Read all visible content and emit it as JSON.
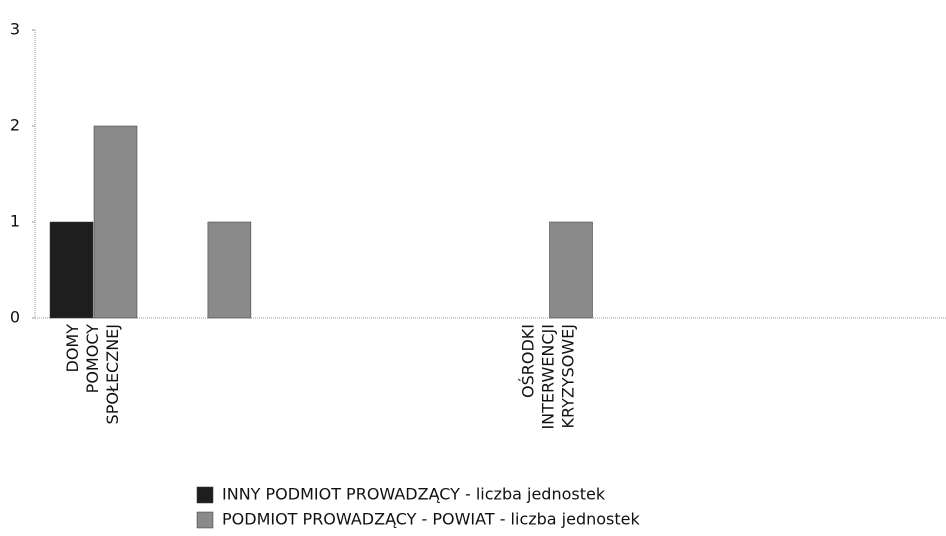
{
  "chart_data": {
    "type": "bar",
    "categories": [
      "DOMY POMOCY SPOŁECZNEJ",
      null,
      null,
      null,
      "OŚRODKI INTERWENCJI KRYZYSOWEJ",
      null,
      null,
      null
    ],
    "series": [
      {
        "name": "INNY PODMIOT PROWADZĄCY - liczba jednostek",
        "color": "#1e1e1e",
        "values": [
          1,
          null,
          null,
          null,
          null,
          null,
          null,
          null
        ]
      },
      {
        "name": "PODMIOT PROWADZĄCY - POWIAT - liczba jednostek",
        "color": "#8a8a8a",
        "values": [
          2,
          1,
          null,
          null,
          1,
          null,
          null,
          null
        ]
      }
    ],
    "ylim": [
      0,
      3
    ],
    "yticks": [
      0,
      1,
      2,
      3
    ],
    "grid": false
  }
}
